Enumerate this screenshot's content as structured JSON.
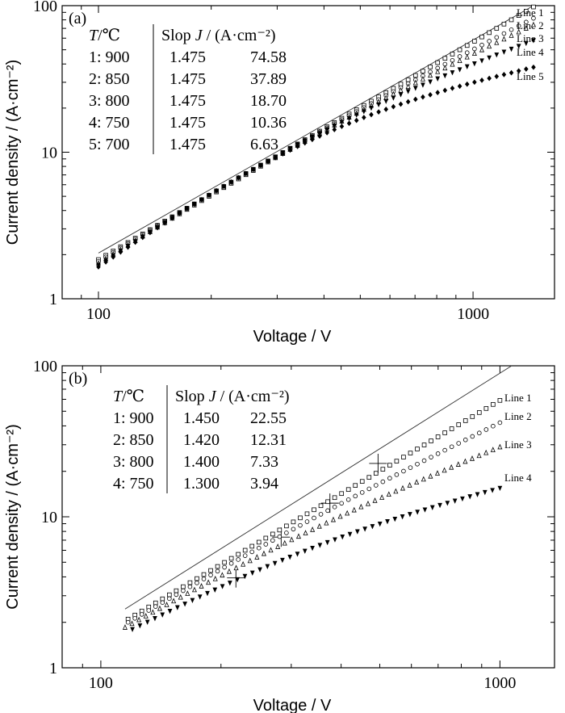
{
  "chart_data": [
    {
      "type": "scatter",
      "panel_label": "(a)",
      "xlabel": "Voltage / V",
      "ylabel": "Current density / (A·cm⁻²)",
      "x_scale": "log",
      "y_scale": "log",
      "xlim": [
        80,
        1650
      ],
      "ylim": [
        1,
        100
      ],
      "x_ticks": [
        "100",
        "1000"
      ],
      "y_ticks": [
        "1",
        "10",
        "100"
      ],
      "legend_header": {
        "temp": "T/℃",
        "slope": "Slop",
        "j": "J / (A·cm⁻²)"
      },
      "legend_rows": [
        {
          "idx": "1: 900",
          "slope": "1.475",
          "j": "74.58"
        },
        {
          "idx": "2: 850",
          "slope": "1.475",
          "j": "37.89"
        },
        {
          "idx": "3: 800",
          "slope": "1.475",
          "j": "18.70"
        },
        {
          "idx": "4: 750",
          "slope": "1.475",
          "j": "10.36"
        },
        {
          "idx": "5: 700",
          "slope": "1.475",
          "j": "6.63"
        }
      ],
      "fit_line": {
        "x": [
          100,
          1450
        ],
        "y": [
          2.05,
          100
        ]
      },
      "series": [
        {
          "name": "Line 1",
          "marker": "square",
          "v_start": 100,
          "v_end": 1450,
          "j_start": 1.85,
          "j_end": 98,
          "curvature": 0,
          "n": 60
        },
        {
          "name": "Line 2",
          "marker": "circle",
          "v_start": 100,
          "v_end": 1450,
          "j_start": 1.8,
          "j_end": 82,
          "curvature": 0.04,
          "n": 60
        },
        {
          "name": "Line 3",
          "marker": "triangle-up",
          "v_start": 100,
          "v_end": 1450,
          "j_start": 1.75,
          "j_end": 74,
          "curvature": 0.06,
          "n": 60
        },
        {
          "name": "Line 4",
          "marker": "triangle-down",
          "v_start": 100,
          "v_end": 1450,
          "j_start": 1.7,
          "j_end": 58,
          "curvature": 0.12,
          "n": 60
        },
        {
          "name": "Line 5",
          "marker": "diamond",
          "v_start": 100,
          "v_end": 1450,
          "j_start": 1.65,
          "j_end": 38,
          "curvature": 0.2,
          "n": 60
        }
      ]
    },
    {
      "type": "scatter",
      "panel_label": "(b)",
      "xlabel": "Voltage / V",
      "ylabel": "Current density / (A·cm⁻²)",
      "x_scale": "log",
      "y_scale": "log",
      "xlim": [
        80,
        1370
      ],
      "ylim": [
        1,
        100
      ],
      "x_ticks": [
        "100",
        "1000"
      ],
      "y_ticks": [
        "1",
        "10",
        "100"
      ],
      "legend_header": {
        "temp": "T/℃",
        "slope": "Slop",
        "j": "J / (A·cm⁻²)"
      },
      "legend_rows": [
        {
          "idx": "1: 900",
          "slope": "1.450",
          "j": "22.55"
        },
        {
          "idx": "2: 850",
          "slope": "1.420",
          "j": "12.31"
        },
        {
          "idx": "3: 800",
          "slope": "1.400",
          "j": "7.33"
        },
        {
          "idx": "4: 750",
          "slope": "1.300",
          "j": "3.94"
        }
      ],
      "fit_line": {
        "x": [
          115,
          1070
        ],
        "y": [
          2.45,
          100
        ]
      },
      "crosshairs": [
        {
          "x": 495,
          "y": 22.55
        },
        {
          "x": 375,
          "y": 12.31
        },
        {
          "x": 283,
          "y": 7.33
        },
        {
          "x": 218,
          "y": 3.94
        }
      ],
      "series": [
        {
          "name": "Line 1",
          "marker": "square",
          "v_start": 117,
          "v_end": 1000,
          "j_start": 2.1,
          "j_end": 59,
          "curvature": 0,
          "n": 55
        },
        {
          "name": "Line 2",
          "marker": "circle",
          "v_start": 117,
          "v_end": 1000,
          "j_start": 2.0,
          "j_end": 42,
          "curvature": 0.03,
          "n": 55
        },
        {
          "name": "Line 3",
          "marker": "triangle-up",
          "v_start": 115,
          "v_end": 1000,
          "j_start": 1.85,
          "j_end": 29,
          "curvature": 0.05,
          "n": 55
        },
        {
          "name": "Line 4",
          "marker": "triangle-down",
          "v_start": 120,
          "v_end": 1000,
          "j_start": 1.8,
          "j_end": 15.5,
          "curvature": 0.08,
          "n": 50
        }
      ]
    }
  ]
}
